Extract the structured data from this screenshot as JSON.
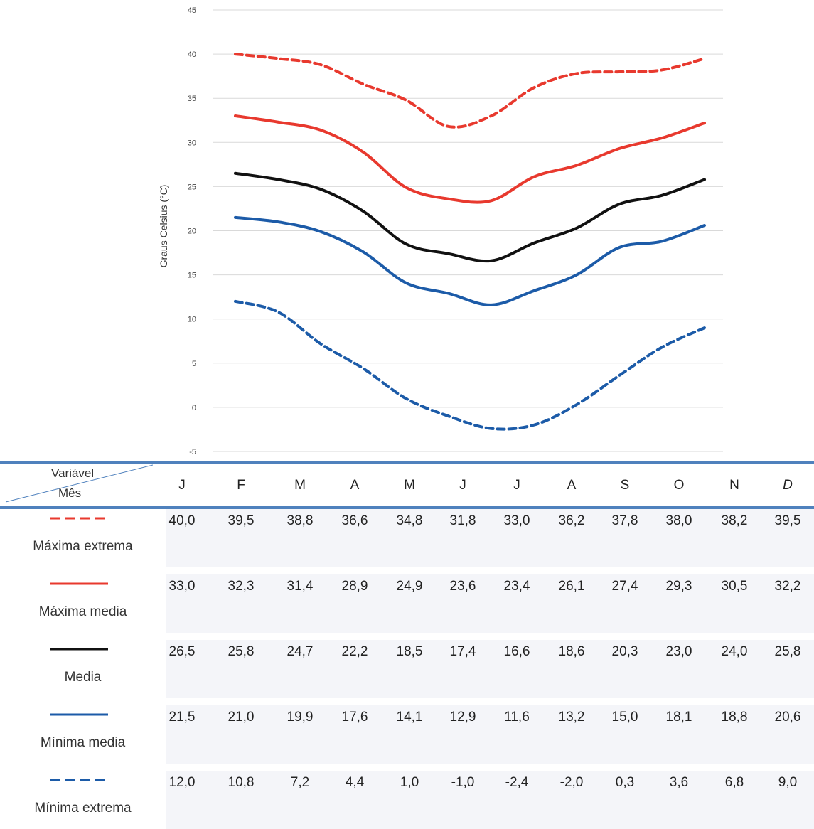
{
  "chart_data": {
    "type": "line",
    "title": "",
    "ylabel": "Graus Celsius (°C)",
    "xlabel": "",
    "ylim": [
      -5,
      45
    ],
    "yticks": [
      45,
      40,
      35,
      30,
      25,
      20,
      15,
      10,
      5,
      0,
      -5
    ],
    "grid": true,
    "categories": [
      "J",
      "F",
      "M",
      "A",
      "M",
      "J",
      "J",
      "A",
      "S",
      "O",
      "N",
      "D"
    ],
    "series": [
      {
        "name": "Máxima extrema",
        "color": "#e8392e",
        "dash": "dashed",
        "values": [
          40.0,
          39.5,
          38.8,
          36.6,
          34.8,
          31.8,
          33.0,
          36.2,
          37.8,
          38.0,
          38.2,
          39.5
        ],
        "labels": [
          "40,0",
          "39,5",
          "38,8",
          "36,6",
          "34,8",
          "31,8",
          "33,0",
          "36,2",
          "37,8",
          "38,0",
          "38,2",
          "39,5"
        ]
      },
      {
        "name": "Máxima media",
        "color": "#e8392e",
        "dash": "solid",
        "values": [
          33.0,
          32.3,
          31.4,
          28.9,
          24.9,
          23.6,
          23.4,
          26.1,
          27.4,
          29.3,
          30.5,
          32.2
        ],
        "labels": [
          "33,0",
          "32,3",
          "31,4",
          "28,9",
          "24,9",
          "23,6",
          "23,4",
          "26,1",
          "27,4",
          "29,3",
          "30,5",
          "32,2"
        ]
      },
      {
        "name": "Media",
        "color": "#111111",
        "dash": "solid",
        "values": [
          26.5,
          25.8,
          24.7,
          22.2,
          18.5,
          17.4,
          16.6,
          18.6,
          20.3,
          23.0,
          24.0,
          25.8
        ],
        "labels": [
          "26,5",
          "25,8",
          "24,7",
          "22,2",
          "18,5",
          "17,4",
          "16,6",
          "18,6",
          "20,3",
          "23,0",
          "24,0",
          "25,8"
        ]
      },
      {
        "name": "Mínima media",
        "color": "#1c5ba8",
        "dash": "solid",
        "values": [
          21.5,
          21.0,
          19.9,
          17.6,
          14.1,
          12.9,
          11.6,
          13.2,
          15.0,
          18.1,
          18.8,
          20.6
        ],
        "labels": [
          "21,5",
          "21,0",
          "19,9",
          "17,6",
          "14,1",
          "12,9",
          "11,6",
          "13,2",
          "15,0",
          "18,1",
          "18,8",
          "20,6"
        ]
      },
      {
        "name": "Mínima extrema",
        "color": "#1c5ba8",
        "dash": "dashed",
        "values": [
          12.0,
          10.8,
          7.2,
          4.4,
          1.0,
          -1.0,
          -2.4,
          -2.0,
          0.3,
          3.6,
          6.8,
          9.0
        ],
        "labels": [
          "12,0",
          "10,8",
          "7,2",
          "4,4",
          "1,0",
          "-1,0",
          "-2,4",
          "-2,0",
          "0,3",
          "3,6",
          "6,8",
          "9,0"
        ]
      }
    ]
  },
  "table": {
    "header_variable": "Variável",
    "header_month": "Mês",
    "months": [
      "J",
      "F",
      "M",
      "A",
      "M",
      "J",
      "J",
      "A",
      "S",
      "O",
      "N",
      "D"
    ]
  }
}
